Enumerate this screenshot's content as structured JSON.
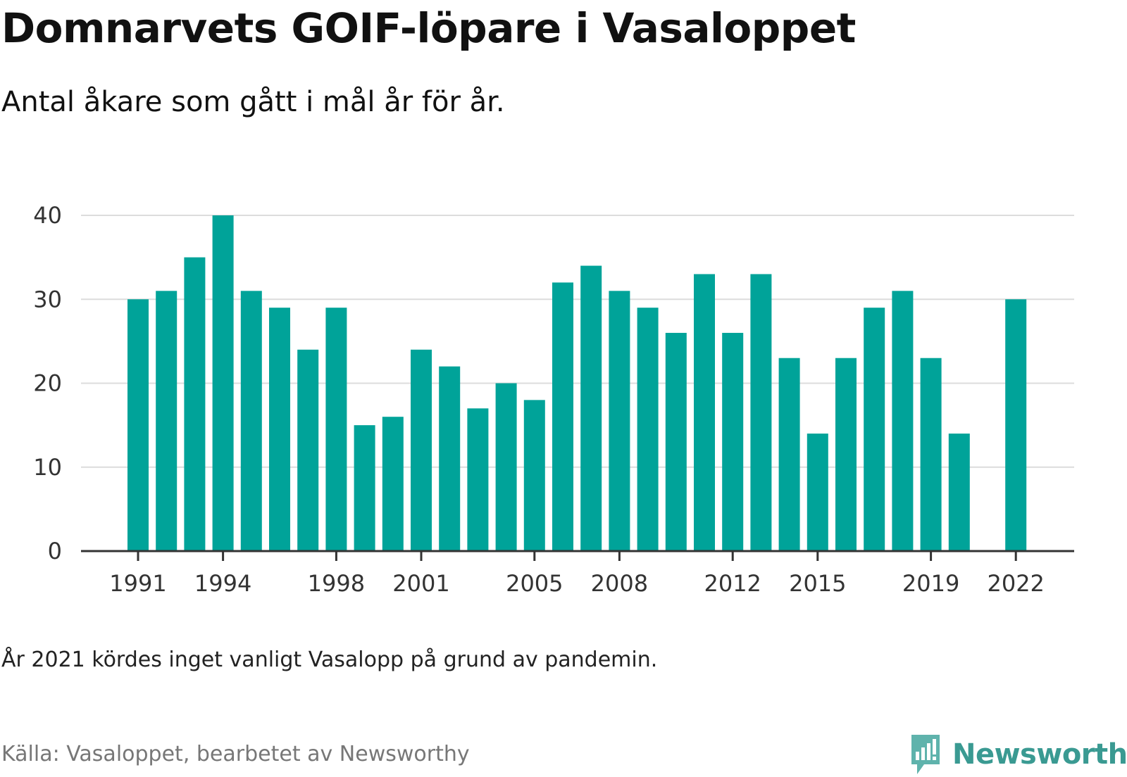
{
  "title": "Domnarvets GOIF-löpare i Vasaloppet",
  "subtitle": "Antal åkare som gått i mål år för år.",
  "note": "År 2021 kördes inget vanligt Vasalopp på grund av pandemin.",
  "source": "Källa: Vasaloppet, bearbetet av Newsworthy",
  "brand": {
    "name": "Newsworthy",
    "color": "#3a9a92",
    "icon": "bar-chart-icon"
  },
  "chart_data": {
    "type": "bar",
    "title": "Domnarvets GOIF-löpare i Vasaloppet",
    "subtitle": "Antal åkare som gått i mål år för år.",
    "xlabel": "",
    "ylabel": "",
    "ylim": [
      0,
      40
    ],
    "yticks": [
      0,
      10,
      20,
      30,
      40
    ],
    "grid": true,
    "bar_color": "#00a399",
    "categories": [
      1991,
      1992,
      1993,
      1994,
      1995,
      1996,
      1997,
      1998,
      1999,
      2000,
      2001,
      2002,
      2003,
      2004,
      2005,
      2006,
      2007,
      2008,
      2009,
      2010,
      2011,
      2012,
      2013,
      2014,
      2015,
      2016,
      2017,
      2018,
      2019,
      2020,
      2021,
      2022
    ],
    "values": [
      30,
      31,
      35,
      40,
      31,
      29,
      24,
      29,
      15,
      16,
      24,
      22,
      17,
      20,
      18,
      32,
      34,
      31,
      29,
      26,
      33,
      26,
      33,
      23,
      14,
      23,
      29,
      31,
      23,
      14,
      null,
      30
    ],
    "xtick_labels": [
      "1991",
      "1994",
      "1998",
      "2001",
      "2005",
      "2008",
      "2012",
      "2015",
      "2019",
      "2022"
    ]
  }
}
